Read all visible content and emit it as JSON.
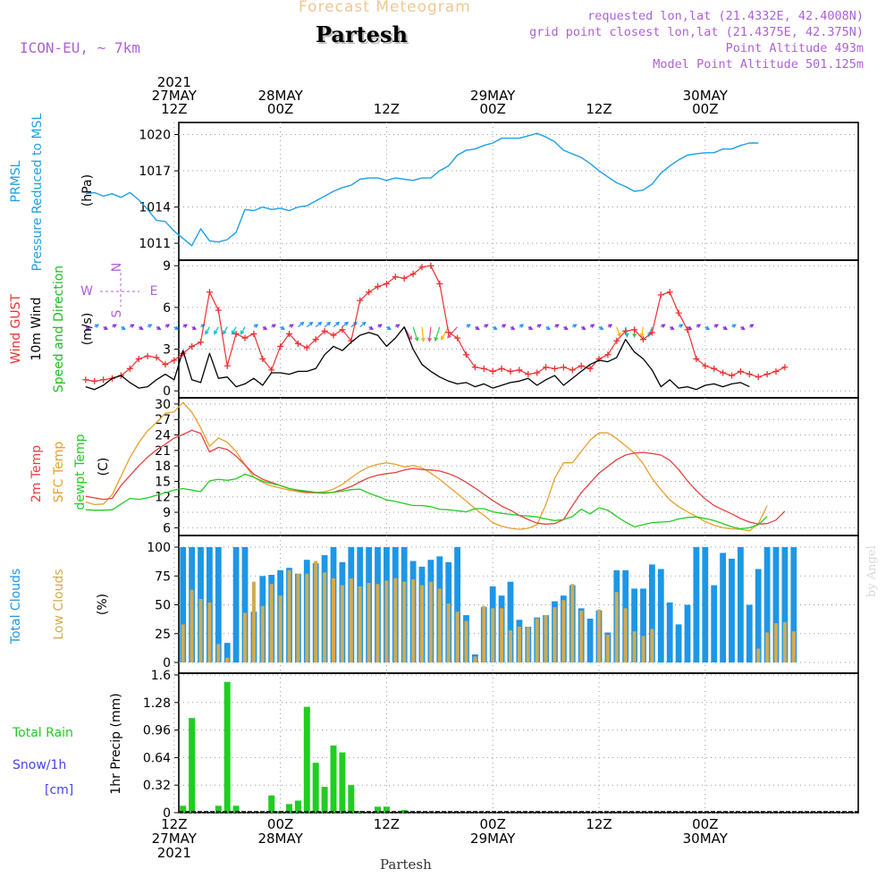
{
  "header": {
    "title": "Forecast Meteogram",
    "location": "Partesh",
    "model": "ICON-EU, ~ 7km",
    "requested": "requested lon,lat (21.4332E, 42.4008N)",
    "gridpoint": "grid point closest lon,lat (21.4375E, 42.375N)",
    "point_alt": "Point Altitude 493m",
    "model_alt": "Model Point Altitude 501.125m"
  },
  "footer": {
    "location": "Partesh",
    "watermark": "by Angel"
  },
  "time_axis": {
    "top": [
      {
        "lines": [
          "2021",
          "27MAY",
          "12Z"
        ],
        "hour": 12
      },
      {
        "lines": [
          "28MAY",
          "00Z"
        ],
        "hour": 24
      },
      {
        "lines": [
          "12Z"
        ],
        "hour": 36
      },
      {
        "lines": [
          "29MAY",
          "00Z"
        ],
        "hour": 48
      },
      {
        "lines": [
          "12Z"
        ],
        "hour": 60
      },
      {
        "lines": [
          "30MAY",
          "00Z"
        ],
        "hour": 72
      }
    ],
    "bottom": [
      {
        "lines": [
          "12Z",
          "27MAY",
          "2021"
        ],
        "hour": 12
      },
      {
        "lines": [
          "00Z",
          "28MAY"
        ],
        "hour": 24
      },
      {
        "lines": [
          "12Z"
        ],
        "hour": 36
      },
      {
        "lines": [
          "00Z",
          "29MAY"
        ],
        "hour": 48
      },
      {
        "lines": [
          "12Z"
        ],
        "hour": 60
      },
      {
        "lines": [
          "00Z",
          "30MAY"
        ],
        "hour": 72
      }
    ]
  },
  "panel_labels": {
    "pressure": {
      "name": "PRMSL",
      "desc": "Pressure Reduced to MSL",
      "unit": "(hPa)"
    },
    "wind": {
      "gust": "Wind GUST",
      "wind10": "10m Wind",
      "speed_dir": "Speed and Direction",
      "unit": "(m/s)",
      "compass": {
        "n": "N",
        "s": "S",
        "w": "W",
        "e": "E"
      }
    },
    "temp": {
      "t2m": "2m Temp",
      "sfc": "SFC Temp",
      "dewpt": "dewpt Temp",
      "unit": "(C)"
    },
    "clouds": {
      "total": "Total Clouds",
      "low": "Low Clouds",
      "unit": "(%)"
    },
    "precip": {
      "rain": "Total  Rain",
      "snow": "Snow/1h",
      "snow_unit": "[cm]",
      "ylabel": "1hr Precip (mm)"
    }
  },
  "colors": {
    "pressure": "#1ea0e6",
    "gust": "#ee3030",
    "wind10": "#000000",
    "dir_label": "#22bb22",
    "t2m": "#e84040",
    "sfc": "#e8a030",
    "dewpt": "#22cc22",
    "total_cloud": "#1e96e6",
    "low_cloud": "#d2aa50",
    "rain": "#22cc22",
    "snow": "#4444ee",
    "compass": "#b060d8"
  },
  "chart_data": [
    {
      "type": "line",
      "panel": "pressure",
      "ylabel": "(hPa)",
      "ylim": [
        1009.6,
        1021.0
      ],
      "yticks": [
        1011,
        1014,
        1017,
        1020
      ],
      "x_hours_start": 2,
      "x_step_hours": 1,
      "series": [
        {
          "name": "PRMSL",
          "values": [
            1015.1,
            1015.2,
            1014.9,
            1015.1,
            1014.8,
            1015.2,
            1014.6,
            1013.8,
            1012.9,
            1012.8,
            1012.0,
            1011.4,
            1010.8,
            1012.2,
            1011.2,
            1011.1,
            1011.3,
            1011.9,
            1013.8,
            1013.7,
            1014.0,
            1013.8,
            1013.9,
            1013.7,
            1014.0,
            1014.1,
            1014.5,
            1014.9,
            1015.3,
            1015.6,
            1015.8,
            1016.3,
            1016.4,
            1016.4,
            1016.2,
            1016.4,
            1016.3,
            1016.2,
            1016.4,
            1016.4,
            1017.0,
            1017.4,
            1018.3,
            1018.7,
            1018.8,
            1019.1,
            1019.3,
            1019.7,
            1019.7,
            1019.7,
            1019.9,
            1020.1,
            1019.8,
            1019.4,
            1018.7,
            1018.4,
            1018.1,
            1017.6,
            1017.0,
            1016.5,
            1016.0,
            1015.7,
            1015.3,
            1015.4,
            1015.9,
            1016.8,
            1017.4,
            1017.9,
            1018.3,
            1018.4,
            1018.5,
            1018.5,
            1018.8,
            1018.8,
            1019.1,
            1019.3,
            1019.3
          ]
        }
      ]
    },
    {
      "type": "line",
      "panel": "wind",
      "ylabel": "(m/s)",
      "ylim": [
        -0.5,
        9.4
      ],
      "yticks": [
        0,
        3,
        6,
        9
      ],
      "x_hours_start": 2,
      "x_step_hours": 1,
      "series": [
        {
          "name": "Wind GUST",
          "marker": "plus",
          "values": [
            0.8,
            0.7,
            0.8,
            0.9,
            1.1,
            1.6,
            2.3,
            2.5,
            2.4,
            1.9,
            2.2,
            2.7,
            3.2,
            3.5,
            7.1,
            5.8,
            1.8,
            4.1,
            3.8,
            4.1,
            2.3,
            1.5,
            3.2,
            4.1,
            3.4,
            3.1,
            3.7,
            4.3,
            4.0,
            4.4,
            3.6,
            6.5,
            7.1,
            7.5,
            7.7,
            8.2,
            8.1,
            8.4,
            8.9,
            9.0,
            7.7,
            4.2,
            3.8,
            2.6,
            1.7,
            1.6,
            1.4,
            1.6,
            1.4,
            1.5,
            1.2,
            1.3,
            1.7,
            1.6,
            1.7,
            1.5,
            1.8,
            1.6,
            2.3,
            2.6,
            3.6,
            4.3,
            4.4,
            3.7,
            4.2,
            6.9,
            7.1,
            5.6,
            4.4,
            2.3,
            1.8,
            1.6,
            1.3,
            1.1,
            1.4,
            1.2,
            1.0,
            1.2,
            1.4,
            1.7
          ]
        },
        {
          "name": "10m Wind",
          "values": [
            0.3,
            0.1,
            0.4,
            0.9,
            1.1,
            0.6,
            0.2,
            0.3,
            0.8,
            1.2,
            0.8,
            2.9,
            0.8,
            0.6,
            2.7,
            0.9,
            1.0,
            0.3,
            0.5,
            0.9,
            0.4,
            1.3,
            1.3,
            1.2,
            1.4,
            1.4,
            1.6,
            2.6,
            3.2,
            2.9,
            3.5,
            4.0,
            4.2,
            4.0,
            3.2,
            3.8,
            4.6,
            3.0,
            1.9,
            1.4,
            1.0,
            0.7,
            0.5,
            0.6,
            0.3,
            0.5,
            0.2,
            0.4,
            0.6,
            0.7,
            0.9,
            0.4,
            0.8,
            1.1,
            0.4,
            0.9,
            1.4,
            1.9,
            2.2,
            2.1,
            2.4,
            3.7,
            2.8,
            2.3,
            1.5,
            0.3,
            0.8,
            0.2,
            0.3,
            0.1,
            0.4,
            0.5,
            0.3,
            0.5,
            0.6,
            0.3
          ]
        }
      ]
    },
    {
      "type": "line",
      "panel": "temperature",
      "ylabel": "(C)",
      "ylim": [
        4.5,
        31.2
      ],
      "yticks": [
        6,
        9,
        12,
        15,
        18,
        21,
        24,
        27,
        30
      ],
      "x_hours_start": 2,
      "x_step_hours": 1,
      "series": [
        {
          "name": "2m Temp",
          "values": [
            12.1,
            11.8,
            11.5,
            11.7,
            14.2,
            16.1,
            18.0,
            19.7,
            21.1,
            22.2,
            23.4,
            24.1,
            24.9,
            24.3,
            20.7,
            21.6,
            21.2,
            19.9,
            18.2,
            16.4,
            15.4,
            14.8,
            14.2,
            13.6,
            13.2,
            12.9,
            12.8,
            12.7,
            12.9,
            13.4,
            14.0,
            14.9,
            15.7,
            16.2,
            16.5,
            16.7,
            17.2,
            17.5,
            17.3,
            17.2,
            17.0,
            16.5,
            15.8,
            14.8,
            13.7,
            12.5,
            11.3,
            10.2,
            9.4,
            8.4,
            7.6,
            6.9,
            6.7,
            6.8,
            7.6,
            10.3,
            12.8,
            14.7,
            16.6,
            17.9,
            19.2,
            20.1,
            20.5,
            20.6,
            20.4,
            20.1,
            19.1,
            17.3,
            15.1,
            13.2,
            11.6,
            10.3,
            9.5,
            8.7,
            7.8,
            7.1,
            6.7,
            6.8,
            7.5,
            9.2
          ]
        },
        {
          "name": "SFC Temp",
          "values": [
            11.0,
            10.5,
            10.6,
            12.4,
            16.0,
            19.6,
            22.5,
            24.8,
            26.4,
            28.2,
            28.5,
            30.3,
            28.4,
            25.4,
            21.8,
            23.4,
            22.6,
            20.8,
            18.2,
            15.8,
            14.8,
            14.1,
            13.7,
            13.3,
            13.0,
            12.8,
            12.8,
            13.0,
            13.5,
            14.4,
            15.7,
            16.9,
            17.8,
            18.3,
            18.6,
            18.3,
            17.8,
            18.1,
            17.6,
            16.6,
            15.4,
            14.0,
            12.6,
            11.2,
            9.7,
            8.4,
            7.0,
            6.3,
            5.9,
            5.7,
            5.9,
            6.6,
            10.5,
            15.6,
            18.6,
            18.6,
            20.8,
            23.0,
            24.4,
            24.4,
            23.3,
            21.9,
            20.5,
            18.4,
            15.6,
            13.4,
            11.4,
            10.1,
            9.1,
            8.2,
            7.2,
            6.5,
            6.0,
            5.8,
            5.7,
            5.4,
            6.8,
            10.3
          ]
        },
        {
          "name": "dewpt Temp",
          "values": [
            9.5,
            9.4,
            9.4,
            9.5,
            10.6,
            11.7,
            11.5,
            11.8,
            12.3,
            12.8,
            13.3,
            13.6,
            13.3,
            13.0,
            15.1,
            15.4,
            15.2,
            15.5,
            16.4,
            15.8,
            15.0,
            14.6,
            14.2,
            13.6,
            13.3,
            13.1,
            12.9,
            12.8,
            12.9,
            13.1,
            13.4,
            13.5,
            12.7,
            12.1,
            11.4,
            11.1,
            10.7,
            10.3,
            10.3,
            10.1,
            9.6,
            9.5,
            9.3,
            9.1,
            9.7,
            9.7,
            9.1,
            8.8,
            8.6,
            8.4,
            8.3,
            8.1,
            7.7,
            7.4,
            7.6,
            8.2,
            9.6,
            8.7,
            9.9,
            9.4,
            8.2,
            7.1,
            6.2,
            6.6,
            7.0,
            7.1,
            7.2,
            7.7,
            8.0,
            8.1,
            7.8,
            7.4,
            6.8,
            6.2,
            5.8,
            6.0,
            6.6,
            8.2
          ]
        }
      ]
    },
    {
      "type": "bar",
      "panel": "clouds",
      "ylabel": "(%)",
      "ylim": [
        0,
        100
      ],
      "yticks": [
        0,
        25,
        50,
        75,
        100
      ],
      "x_hours_start": 1,
      "x_step_hours": 1,
      "series": [
        {
          "name": "Total Clouds",
          "values": [
            95,
            60,
            26,
            37,
            57,
            63,
            48,
            53,
            58,
            100,
            100,
            100,
            100,
            100,
            100,
            100,
            100,
            17,
            100,
            100,
            44,
            75,
            76,
            80,
            82,
            77,
            89,
            86,
            93,
            100,
            87,
            100,
            100,
            100,
            100,
            100,
            100,
            100,
            88,
            83,
            89,
            92,
            87,
            100,
            41,
            7,
            48,
            66,
            58,
            70,
            37,
            31,
            39,
            41,
            53,
            58,
            67,
            47,
            38,
            45,
            26,
            80,
            80,
            64,
            64,
            85,
            81,
            52,
            33,
            50,
            100,
            100,
            67,
            95,
            90,
            100,
            50,
            81,
            100,
            100,
            100,
            100
          ]
        },
        {
          "name": "Low Clouds",
          "values": [
            60,
            70,
            26,
            33,
            5,
            52,
            41,
            47,
            48,
            30,
            30,
            42,
            33,
            63,
            55,
            52,
            16,
            4,
            0,
            43,
            70,
            49,
            68,
            58,
            80,
            77,
            77,
            88,
            78,
            73,
            67,
            73,
            66,
            69,
            68,
            71,
            73,
            70,
            72,
            67,
            70,
            64,
            51,
            44,
            36,
            5,
            49,
            47,
            47,
            28,
            31,
            31,
            38,
            41,
            48,
            54,
            68,
            45,
            0,
            46,
            24,
            61,
            47,
            27,
            23,
            29,
            0,
            0,
            0,
            0,
            0,
            0,
            0,
            0,
            0,
            0,
            0,
            12,
            26,
            34,
            35,
            27
          ]
        }
      ]
    },
    {
      "type": "bar",
      "panel": "precipitation",
      "ylabel": "1hr Precip (mm)",
      "ylim": [
        0,
        1.6
      ],
      "yticks": [
        0,
        0.32,
        0.64,
        0.96,
        1.28,
        1.6
      ],
      "x_hours_start": 2,
      "x_step_hours": 1,
      "series": [
        {
          "name": "Total Rain",
          "values": [
            0,
            0,
            0,
            0,
            0,
            0,
            0,
            0,
            0,
            0,
            0,
            0.08,
            1.1,
            0,
            0,
            0.08,
            1.52,
            0.08,
            0,
            0,
            0,
            0.2,
            0.02,
            0.1,
            0.14,
            1.23,
            0.58,
            0.3,
            0.78,
            0.7,
            0.32,
            0.02,
            0,
            0.07,
            0.07,
            0,
            0.03,
            0,
            0,
            0,
            0,
            0,
            0,
            0,
            0,
            0,
            0,
            0,
            0,
            0,
            0,
            0,
            0,
            0,
            0,
            0,
            0,
            0,
            0,
            0,
            0,
            0,
            0,
            0,
            0,
            0,
            0,
            0,
            0,
            0,
            0,
            0,
            0,
            0,
            0,
            0,
            0,
            0
          ]
        }
      ]
    }
  ]
}
